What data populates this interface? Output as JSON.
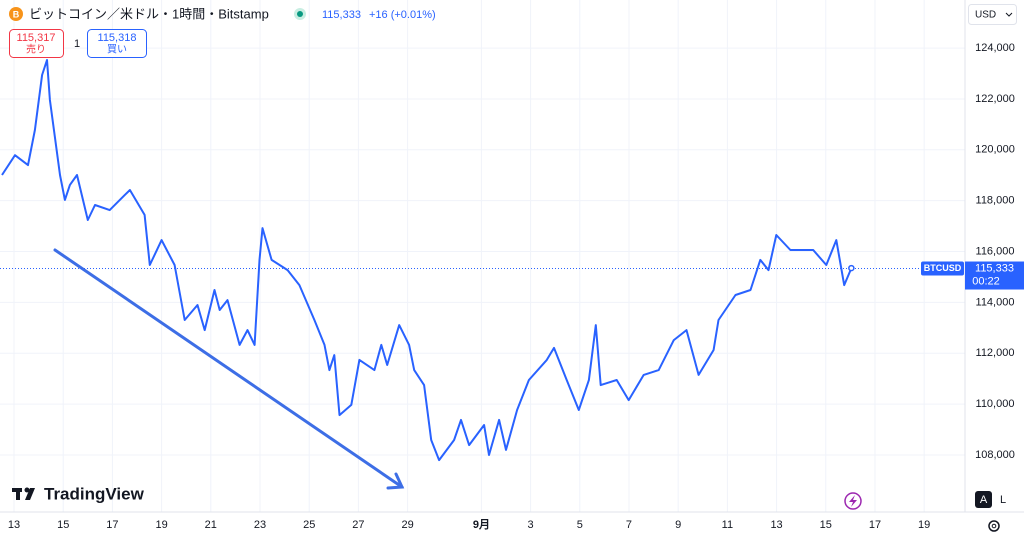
{
  "chart_data": {
    "type": "line",
    "title": "ビットコイン／米ドル・1時間・Bitstamp",
    "header": {
      "price": "115,333",
      "change": "+16 (+0.01%)",
      "sell_price": "115,317",
      "sell_label": "売り",
      "quantity": "1",
      "buy_price": "115,318",
      "buy_label": "買い"
    },
    "currency": "USD",
    "x": [
      -0.49,
      0.04,
      0.57,
      0.85,
      1.14,
      1.34,
      1.46,
      1.87,
      2.07,
      2.27,
      2.56,
      3.0,
      3.29,
      3.89,
      4.5,
      4.71,
      5.31,
      5.52,
      6.0,
      6.53,
      6.94,
      7.46,
      7.75,
      8.15,
      8.36,
      8.68,
      9.17,
      9.49,
      9.78,
      9.98,
      10.1,
      10.47,
      11.12,
      11.6,
      12.21,
      12.62,
      12.82,
      13.02,
      13.23,
      13.71,
      14.04,
      14.65,
      14.93,
      15.17,
      15.66,
      16.06,
      16.27,
      16.67,
      16.96,
      17.28,
      17.89,
      18.17,
      18.5,
      19.11,
      19.31,
      19.72,
      20.0,
      20.45,
      20.93,
      21.66,
      21.95,
      22.47,
      22.96,
      23.37,
      23.65,
      23.85,
      24.5,
      24.99,
      25.6,
      26.21,
      26.82,
      27.34,
      27.83,
      28.44,
      28.64,
      29.33,
      29.94,
      30.34,
      30.67,
      30.99,
      31.56,
      32.49,
      33.02,
      33.43,
      33.75,
      34.04
    ],
    "series": [
      {
        "name": "BTCUSD",
        "color": "#2962ff",
        "values": [
          119010,
          119790,
          119400,
          120780,
          122940,
          123530,
          121960,
          119010,
          118030,
          118620,
          119010,
          117240,
          117830,
          117630,
          118220,
          118420,
          117440,
          115470,
          116450,
          115470,
          113310,
          113900,
          112910,
          114490,
          113700,
          114090,
          112330,
          112910,
          112330,
          115670,
          116920,
          115670,
          115270,
          114680,
          113310,
          112330,
          111340,
          111930,
          109570,
          109970,
          111740,
          111340,
          112330,
          111540,
          113110,
          112330,
          111340,
          110750,
          108590,
          107800,
          108590,
          109380,
          108390,
          109180,
          108000,
          109380,
          108200,
          109770,
          110950,
          111740,
          112210,
          110950,
          109770,
          110950,
          113110,
          110750,
          110950,
          110160,
          111150,
          111340,
          112520,
          112910,
          111150,
          112130,
          113310,
          114290,
          114490,
          115670,
          115270,
          116650,
          116060,
          116060,
          115470,
          116450,
          114680,
          115350
        ]
      }
    ],
    "last_price": {
      "value": 115333,
      "label": "115,333"
    },
    "countdown": "00:22",
    "xlim": [
      -0.57,
      38.66
    ],
    "ylim": [
      105760,
      125890
    ],
    "xticks": [
      {
        "value": 0,
        "label": "13"
      },
      {
        "value": 2,
        "label": "15"
      },
      {
        "value": 4,
        "label": "17"
      },
      {
        "value": 6,
        "label": "19"
      },
      {
        "value": 8,
        "label": "21"
      },
      {
        "value": 10,
        "label": "23"
      },
      {
        "value": 12,
        "label": "25"
      },
      {
        "value": 14,
        "label": "27"
      },
      {
        "value": 16,
        "label": "29"
      },
      {
        "value": 19,
        "label": "9月"
      },
      {
        "value": 21,
        "label": "3"
      },
      {
        "value": 23,
        "label": "5"
      },
      {
        "value": 25,
        "label": "7"
      },
      {
        "value": 27,
        "label": "9"
      },
      {
        "value": 29,
        "label": "11"
      },
      {
        "value": 31,
        "label": "13"
      },
      {
        "value": 33,
        "label": "15"
      },
      {
        "value": 35,
        "label": "17"
      },
      {
        "value": 37,
        "label": "19"
      }
    ],
    "yticks": [
      {
        "value": 108000,
        "label": "108,000"
      },
      {
        "value": 110000,
        "label": "110,000"
      },
      {
        "value": 112000,
        "label": "112,000"
      },
      {
        "value": 114000,
        "label": "114,000"
      },
      {
        "value": 116000,
        "label": "116,000"
      },
      {
        "value": 118000,
        "label": "118,000"
      },
      {
        "value": 120000,
        "label": "120,000"
      },
      {
        "value": 122000,
        "label": "122,000"
      },
      {
        "value": 124000,
        "label": "124,000"
      }
    ],
    "grid": true,
    "branding": "TradingView",
    "buttons": [
      "A",
      "L"
    ]
  }
}
